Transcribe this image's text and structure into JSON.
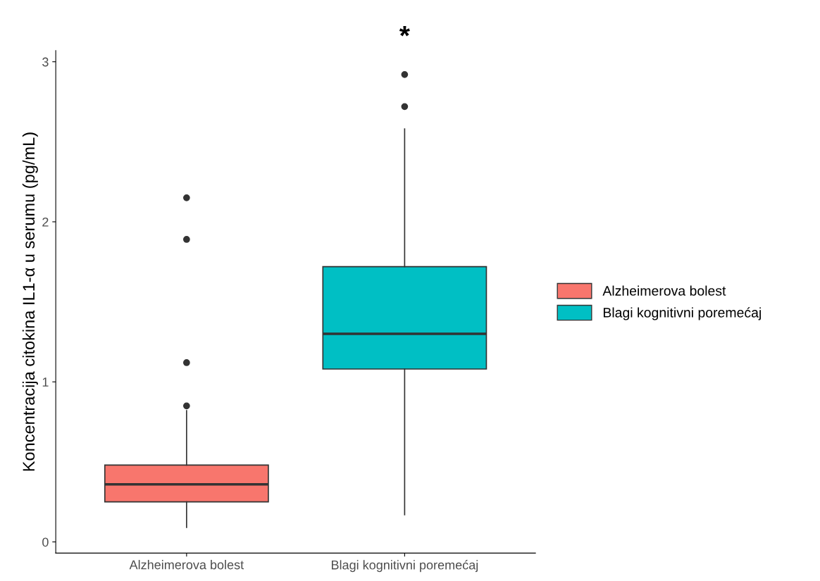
{
  "chart_data": {
    "type": "box",
    "ylabel": "Koncentracija citokina IL1-α u serumu (pg/mL)",
    "categories": [
      "Alzheimerova bolest",
      "Blagi kognitivni poremećaj"
    ],
    "series": [
      {
        "name": "Alzheimerova bolest",
        "color": "#f8766d",
        "boxes": [
          {
            "low": 0.09,
            "q1": 0.25,
            "median": 0.36,
            "q3": 0.48,
            "high": 0.82,
            "outliers": [
              0.85,
              1.12,
              1.89,
              2.15
            ]
          },
          null
        ]
      },
      {
        "name": "Blagi kognitivni poremećaj",
        "color": "#00bfc4",
        "boxes": [
          null,
          {
            "low": 0.17,
            "q1": 1.08,
            "median": 1.3,
            "q3": 1.72,
            "high": 2.58,
            "outliers": [
              2.72,
              2.92
            ]
          }
        ]
      }
    ],
    "ylim": [
      -0.07,
      3.07
    ],
    "yticks": [
      0,
      1,
      2,
      3
    ],
    "grid": false,
    "legend": "right",
    "annotations": [
      "*"
    ]
  }
}
